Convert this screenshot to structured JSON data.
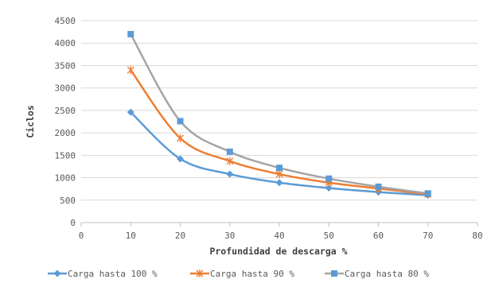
{
  "chart_data": {
    "type": "line",
    "title": "",
    "xlabel": "Profundidad de descarga %",
    "ylabel": "Ciclos",
    "xlim": [
      0,
      80
    ],
    "ylim": [
      0,
      4500
    ],
    "x_ticks": [
      0,
      10,
      20,
      30,
      40,
      50,
      60,
      70,
      80
    ],
    "y_ticks": [
      0,
      500,
      1000,
      1500,
      2000,
      2500,
      3000,
      3500,
      4000,
      4500
    ],
    "grid": "horizontal",
    "legend_position": "bottom",
    "x": [
      10,
      20,
      30,
      40,
      50,
      60,
      70
    ],
    "series": [
      {
        "name": "Carga hasta 100 %",
        "color": "#5b9bd5",
        "marker": "diamond",
        "values": [
          2460,
          1420,
          1080,
          890,
          770,
          680,
          610
        ]
      },
      {
        "name": "Carga hasta 90 %",
        "color": "#ed7d31",
        "marker": "x",
        "values": [
          3400,
          1880,
          1370,
          1080,
          890,
          760,
          630
        ]
      },
      {
        "name": "Carga hasta 80 %",
        "color": "#a5a5a5",
        "marker": "square",
        "marker_color": "#5b9bd5",
        "values": [
          4200,
          2260,
          1580,
          1220,
          980,
          800,
          650
        ]
      }
    ]
  }
}
